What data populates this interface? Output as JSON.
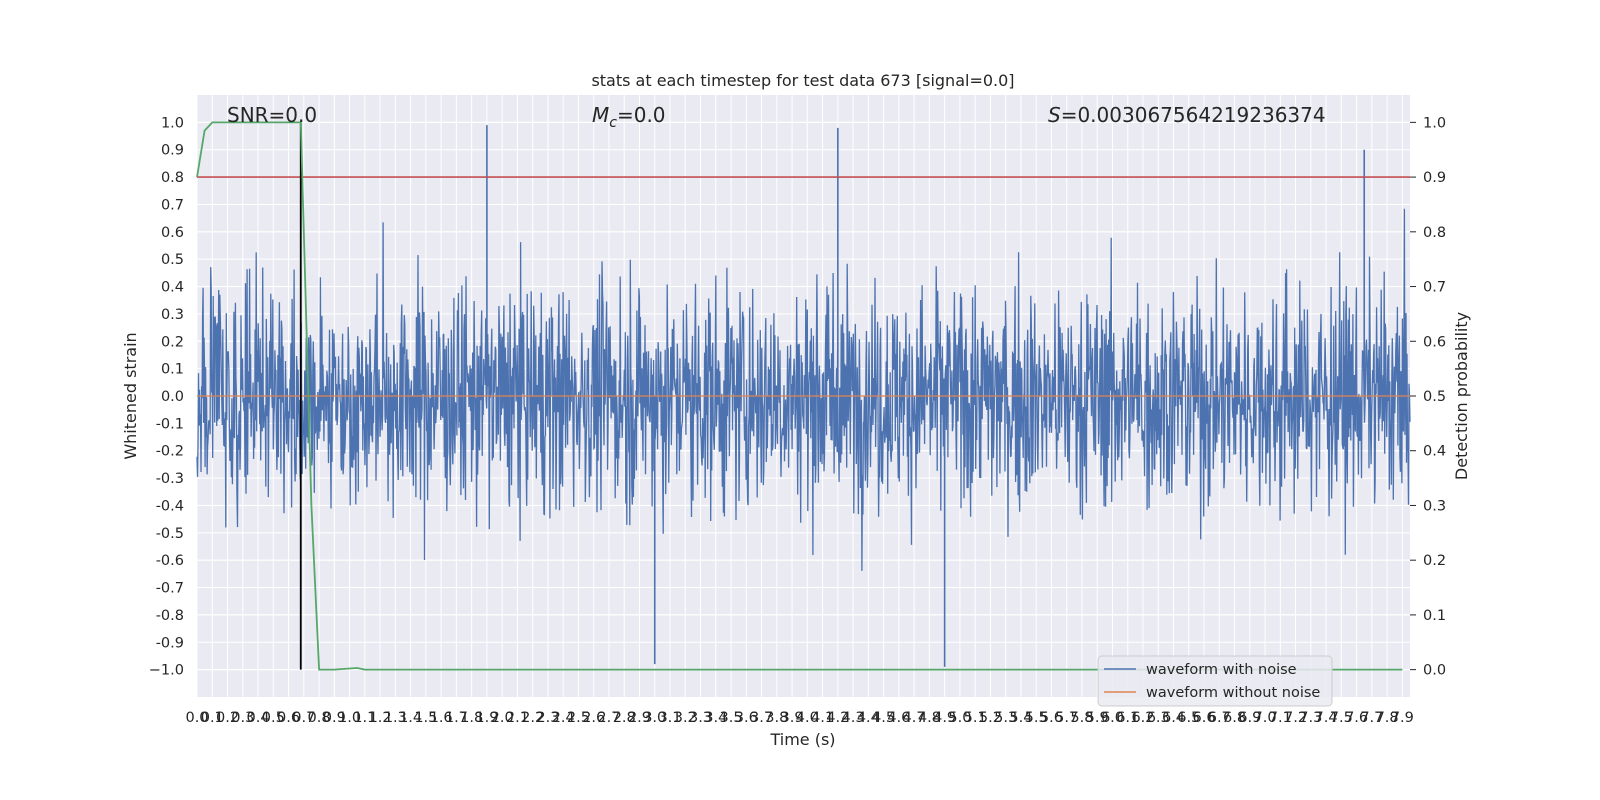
{
  "chart_data": {
    "type": "line",
    "title": "stats at each timestep for test data 673 [signal=0.0]",
    "xlabel": "Time (s)",
    "ylabel_left": "Whitened strain",
    "ylabel_right": "Detection probability",
    "xlim": [
      0.0,
      7.95
    ],
    "ylim_left": [
      -1.1,
      1.1
    ],
    "ylim_right": [
      -0.05,
      1.05
    ],
    "grid": true,
    "legend_position": "lower-right",
    "x_ticks": [
      "0.0",
      "0.1",
      "0.2",
      "0.3",
      "0.4",
      "0.5",
      "0.6",
      "0.7",
      "0.8",
      "0.9",
      "1.0",
      "1.1",
      "1.2",
      "1.3",
      "1.4",
      "1.5",
      "1.6",
      "1.7",
      "1.8",
      "1.9",
      "2.0",
      "2.1",
      "2.2",
      "2.3",
      "2.4",
      "2.5",
      "2.6",
      "2.7",
      "2.8",
      "2.9",
      "3.0",
      "3.1",
      "3.2",
      "3.3",
      "3.4",
      "3.5",
      "3.6",
      "3.7",
      "3.8",
      "3.9",
      "4.0",
      "4.1",
      "4.2",
      "4.3",
      "4.4",
      "4.5",
      "4.6",
      "4.7",
      "4.8",
      "4.9",
      "5.0",
      "5.1",
      "5.2",
      "5.3",
      "5.4",
      "5.5",
      "5.6",
      "5.7",
      "5.8",
      "5.9",
      "6.0",
      "6.1",
      "6.2",
      "6.3",
      "6.4",
      "6.5",
      "6.6",
      "6.7",
      "6.8",
      "6.9",
      "7.0",
      "7.1",
      "7.2",
      "7.3",
      "7.4",
      "7.5",
      "7.6",
      "7.7",
      "7.8",
      "7.9"
    ],
    "y_ticks_left": [
      "1.0",
      "0.9",
      "0.8",
      "0.7",
      "0.6",
      "0.5",
      "0.4",
      "0.3",
      "0.2",
      "0.1",
      "0.0",
      "-0.1",
      "-0.2",
      "-0.3",
      "-0.4",
      "-0.5",
      "-0.6",
      "-0.7",
      "-0.8",
      "-0.9",
      "−1.0"
    ],
    "y_ticks_right": [
      "1.0",
      "0.9",
      "0.8",
      "0.7",
      "0.6",
      "0.5",
      "0.4",
      "0.3",
      "0.2",
      "0.1",
      "0.0"
    ],
    "annotations": {
      "snr": "SNR=0.0",
      "mc_symbol": "M",
      "mc_subscript": "c",
      "mc_value": "=0.0",
      "s_symbol": "S",
      "s_value": "=0.003067564219236374"
    },
    "threshold_probability": 0.9,
    "marker_time": 0.68,
    "series": [
      {
        "name": "waveform with noise",
        "color": "#4c72b0",
        "description": "noise only, roughly spanning -1.0 to 1.0 in strain",
        "noise_range": [
          -1.0,
          1.0
        ],
        "notable_peaks": [
          {
            "x": 1.9,
            "y": 0.99
          },
          {
            "x": 4.2,
            "y": 0.98
          },
          {
            "x": 7.65,
            "y": 0.9
          },
          {
            "x": 3.0,
            "y": -0.98
          },
          {
            "x": 4.9,
            "y": -0.99
          }
        ]
      },
      {
        "name": "waveform without noise",
        "color": "#dd8452",
        "description": "flat at zero (signal=0.0)",
        "x": [
          0.0,
          7.95
        ],
        "y": [
          0.0,
          0.0
        ]
      },
      {
        "name": "detection probability",
        "color": "#55a868",
        "axis": "right",
        "x": [
          0.0,
          0.05,
          0.1,
          0.2,
          0.3,
          0.4,
          0.5,
          0.6,
          0.68,
          0.7,
          0.75,
          0.8,
          0.9,
          1.0,
          1.05,
          1.1,
          1.2,
          7.9
        ],
        "y": [
          0.9,
          0.985,
          1.0,
          1.0,
          1.0,
          1.0,
          1.0,
          1.0,
          1.0,
          0.8,
          0.3,
          0.0,
          0.0,
          0.002,
          0.003,
          0.0,
          0.0,
          0.0
        ]
      }
    ],
    "colors": {
      "threshold": "#c44e52",
      "marker": "#000000",
      "background": "#eaeaf2",
      "grid": "#ffffff"
    }
  },
  "legend": {
    "items": [
      {
        "label": "waveform with noise",
        "color": "#4c72b0"
      },
      {
        "label": "waveform without noise",
        "color": "#dd8452"
      }
    ]
  }
}
